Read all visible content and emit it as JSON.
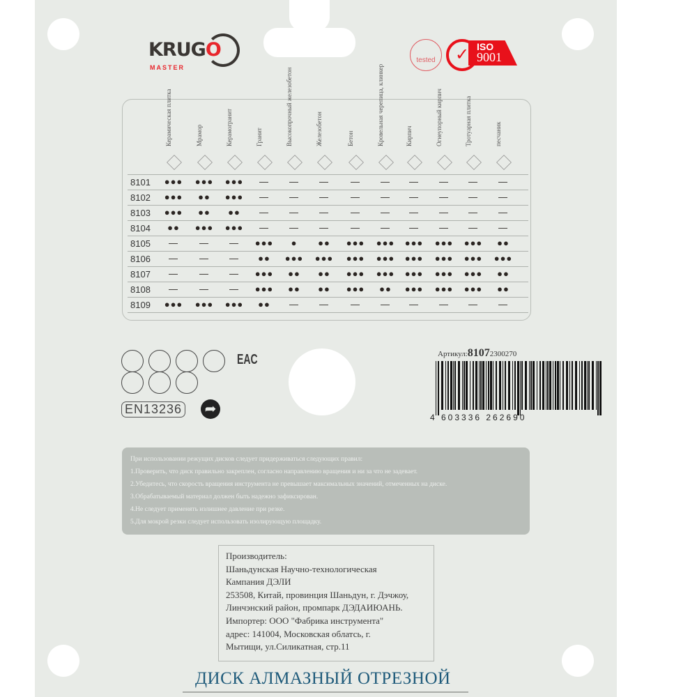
{
  "brand": {
    "name_part1": "KRUG",
    "name_part2": "O",
    "sub": "MASTER",
    "accent": "#e8262c"
  },
  "certificates": {
    "tested_label": "tested",
    "iso_top": "ISO",
    "iso_bottom": "9001"
  },
  "table": {
    "materials": [
      "Керамическая плитка",
      "Мрамор",
      "Керамогранит",
      "Гранит",
      "Высокопрочный железобетон",
      "Железобетон",
      "Бетон",
      "Кровельная черепица, клинкер",
      "Кирпич",
      "Огнеупорный кирпич",
      "Тротуарная плитка",
      "песчаник"
    ],
    "rows": [
      {
        "code": "8101",
        "cells": [
          "●●●",
          "●●●",
          "●●●",
          "—",
          "—",
          "—",
          "—",
          "—",
          "—",
          "—",
          "—",
          "—"
        ]
      },
      {
        "code": "8102",
        "cells": [
          "●●●",
          "●●",
          "●●●",
          "—",
          "—",
          "—",
          "—",
          "—",
          "—",
          "—",
          "—",
          "—"
        ]
      },
      {
        "code": "8103",
        "cells": [
          "●●●",
          "●●",
          "●●",
          "—",
          "—",
          "—",
          "—",
          "—",
          "—",
          "—",
          "—",
          "—"
        ]
      },
      {
        "code": "8104",
        "cells": [
          "●●",
          "●●●",
          "●●●",
          "—",
          "—",
          "—",
          "—",
          "—",
          "—",
          "—",
          "—",
          "—"
        ]
      },
      {
        "code": "8105",
        "cells": [
          "—",
          "—",
          "—",
          "●●●",
          "●",
          "●●",
          "●●●",
          "●●●",
          "●●●",
          "●●●",
          "●●●",
          "●●"
        ]
      },
      {
        "code": "8106",
        "cells": [
          "—",
          "—",
          "—",
          "●●",
          "●●●",
          "●●●",
          "●●●",
          "●●●",
          "●●●",
          "●●●",
          "●●●",
          "●●●"
        ]
      },
      {
        "code": "8107",
        "cells": [
          "—",
          "—",
          "—",
          "●●●",
          "●●",
          "●●",
          "●●●",
          "●●●",
          "●●●",
          "●●●",
          "●●●",
          "●●"
        ]
      },
      {
        "code": "8108",
        "cells": [
          "—",
          "—",
          "—",
          "●●●",
          "●●",
          "●●",
          "●●●",
          "●●",
          "●●●",
          "●●●",
          "●●●",
          "●●"
        ]
      },
      {
        "code": "8109",
        "cells": [
          "●●●",
          "●●●",
          "●●●",
          "●●",
          "—",
          "—",
          "—",
          "—",
          "—",
          "—",
          "—",
          "—"
        ]
      }
    ]
  },
  "safety_icons": [
    "respirator-icon",
    "gloves-icon",
    "boots-icon",
    "helmet-icon",
    "goggles-icon",
    "manual-icon",
    "no-wet-icon"
  ],
  "eac": "EAC",
  "standard": "EN13236",
  "article": {
    "label": "Артикул:",
    "code": "8107",
    "suffix": "2300270"
  },
  "barcode_number": "4 603336 262690",
  "rules": [
    "При использовании режущих дисков следует придерживаться следующих правил:",
    "1.Проверить, что диск правильно закреплен, согласно направлению вращения и ни за что не задевает.",
    "2.Убедитесь, что скорость вращения инструмента не превышает максимальных значений, отмеченных на диске.",
    "3.Обрабатываемый материал должен быть надежно зафиксирован.",
    "4.Не следует применять излишнее давление при резке.",
    "5.Для мокрой резки следует использовать изолирующую площадку."
  ],
  "manufacturer": [
    "Производитель:",
    "Шаньдунская Научно-технологическая",
    "Кампания ДЭЛИ",
    "253508, Китай, провинция Шаньдун, г. Дэчжоу,",
    "Линчэнский район, промпарк ДЭДАИЮАНЬ.",
    "Импортер: ООО \"Фабрика инструмента\"",
    "адрес: 141004, Московская облатсь, г.",
    "Мытищи, ул.Силикатная, стр.11"
  ],
  "product_title": "ДИСК АЛМАЗНЫЙ ОТРЕЗНОЙ"
}
